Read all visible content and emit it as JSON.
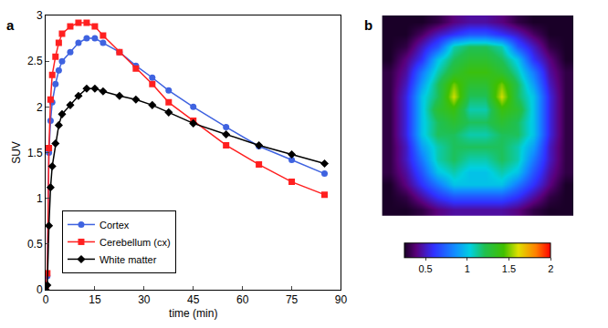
{
  "chart_data": [
    {
      "type": "line",
      "label": "a",
      "x_label": "time (min)",
      "y_label": "SUV",
      "x": [
        0,
        0.5,
        1,
        1.5,
        2,
        3,
        4,
        5,
        7.5,
        10,
        12.5,
        15,
        17.5,
        22.5,
        27.5,
        32.5,
        37.5,
        45,
        55,
        65,
        75,
        85
      ],
      "series": [
        {
          "name": "Cortex",
          "color": "#3f63e0",
          "marker": "circle",
          "values": [
            0,
            0.15,
            1.5,
            1.85,
            2.05,
            2.25,
            2.4,
            2.5,
            2.6,
            2.7,
            2.75,
            2.75,
            2.7,
            2.6,
            2.45,
            2.32,
            2.18,
            2.0,
            1.78,
            1.57,
            1.42,
            1.27
          ]
        },
        {
          "name": "Cerebellum (cx)",
          "color": "#ff2020",
          "marker": "square",
          "values": [
            0,
            0.18,
            1.55,
            2.08,
            2.35,
            2.55,
            2.7,
            2.8,
            2.88,
            2.92,
            2.92,
            2.88,
            2.78,
            2.6,
            2.42,
            2.25,
            2.05,
            1.85,
            1.58,
            1.37,
            1.18,
            1.04
          ]
        },
        {
          "name": "White matter",
          "color": "#000000",
          "marker": "diamond",
          "values": [
            0,
            0.05,
            0.7,
            1.12,
            1.35,
            1.6,
            1.8,
            1.92,
            2.02,
            2.12,
            2.2,
            2.2,
            2.17,
            2.12,
            2.08,
            2.02,
            1.94,
            1.82,
            1.7,
            1.58,
            1.48,
            1.38
          ]
        }
      ],
      "xlim": [
        0,
        90
      ],
      "xticks": [
        0,
        15,
        30,
        45,
        60,
        75,
        90
      ],
      "ylim": [
        0,
        3
      ],
      "yticks": [
        0,
        0.5,
        1,
        1.5,
        2,
        2.5,
        3
      ],
      "legend": "lower left",
      "grid": false
    },
    {
      "type": "heatmap",
      "label": "b",
      "tick_labels": false,
      "cells": [
        [
          0.25,
          0.25,
          0.25,
          0.3,
          0.4,
          0.45,
          0.45,
          0.4,
          0.3,
          0.25,
          0.25,
          0.25
        ],
        [
          0.25,
          0.25,
          0.35,
          0.5,
          0.6,
          0.7,
          0.7,
          0.6,
          0.5,
          0.35,
          0.25,
          0.25
        ],
        [
          0.25,
          0.3,
          0.5,
          0.7,
          1.1,
          1.2,
          1.2,
          1.1,
          0.7,
          0.5,
          0.3,
          0.25
        ],
        [
          0.25,
          0.4,
          0.6,
          1.0,
          1.2,
          1.3,
          1.3,
          1.2,
          1.0,
          0.6,
          0.4,
          0.25
        ],
        [
          0.3,
          0.45,
          0.8,
          1.1,
          1.3,
          1.4,
          1.4,
          1.3,
          1.1,
          0.8,
          0.45,
          0.3
        ],
        [
          0.3,
          0.5,
          0.9,
          1.2,
          1.5,
          1.3,
          1.3,
          1.5,
          1.2,
          0.9,
          0.5,
          0.3
        ],
        [
          0.3,
          0.55,
          1.0,
          1.2,
          1.6,
          1.2,
          1.2,
          1.6,
          1.2,
          1.0,
          0.55,
          0.3
        ],
        [
          0.3,
          0.55,
          1.0,
          1.3,
          1.4,
          1.1,
          1.1,
          1.4,
          1.3,
          1.0,
          0.55,
          0.3
        ],
        [
          0.3,
          0.55,
          1.0,
          1.2,
          1.3,
          1.2,
          1.2,
          1.3,
          1.2,
          1.0,
          0.55,
          0.3
        ],
        [
          0.3,
          0.55,
          1.0,
          1.2,
          1.2,
          1.1,
          1.1,
          1.2,
          1.2,
          1.0,
          0.55,
          0.3
        ],
        [
          0.3,
          0.5,
          0.9,
          1.1,
          1.2,
          1.2,
          1.2,
          1.2,
          1.1,
          0.9,
          0.5,
          0.3
        ],
        [
          0.3,
          0.5,
          0.8,
          1.1,
          1.2,
          1.1,
          1.1,
          1.2,
          1.1,
          0.8,
          0.5,
          0.3
        ],
        [
          0.3,
          0.45,
          0.7,
          1.0,
          1.1,
          1.0,
          1.0,
          1.1,
          1.0,
          0.7,
          0.45,
          0.3
        ],
        [
          0.25,
          0.4,
          0.6,
          0.8,
          1.0,
          1.0,
          1.0,
          1.0,
          0.8,
          0.6,
          0.4,
          0.25
        ],
        [
          0.25,
          0.3,
          0.45,
          0.6,
          0.7,
          0.7,
          0.7,
          0.7,
          0.6,
          0.45,
          0.3,
          0.25
        ],
        [
          0.25,
          0.25,
          0.3,
          0.4,
          0.45,
          0.45,
          0.45,
          0.45,
          0.4,
          0.3,
          0.25,
          0.25
        ]
      ],
      "colorbar_range": [
        0.25,
        2
      ],
      "colorbar_ticks": [
        0.5,
        1,
        1.5,
        2
      ]
    }
  ]
}
